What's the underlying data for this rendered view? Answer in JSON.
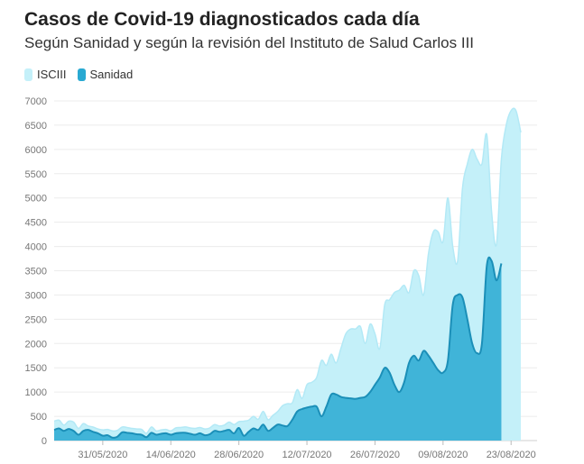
{
  "chart_data": {
    "type": "area",
    "title": "Casos de Covid-19 diagnosticados cada día",
    "subtitle": "Según Sanidad y según la revisión del Instituto de Salud Carlos III",
    "xlabel": "",
    "ylabel": "",
    "ylim": [
      0,
      7000
    ],
    "yticks": [
      0,
      500,
      1000,
      1500,
      2000,
      2500,
      3000,
      3500,
      4000,
      4500,
      5000,
      5500,
      6000,
      6500,
      7000
    ],
    "xticks": [
      {
        "day": 10,
        "label": "31/05/2020"
      },
      {
        "day": 24,
        "label": "14/06/2020"
      },
      {
        "day": 38,
        "label": "28/06/2020"
      },
      {
        "day": 52,
        "label": "12/07/2020"
      },
      {
        "day": 66,
        "label": "26/07/2020"
      },
      {
        "day": 80,
        "label": "09/08/2020"
      },
      {
        "day": 94,
        "label": "23/08/2020"
      }
    ],
    "grid": true,
    "legend_position": "top-left",
    "series": [
      {
        "name": "ISCIII",
        "color": "#c4f0f9",
        "values": [
          400,
          420,
          320,
          400,
          380,
          250,
          350,
          300,
          280,
          240,
          220,
          230,
          200,
          210,
          280,
          270,
          250,
          240,
          230,
          150,
          280,
          200,
          220,
          230,
          200,
          260,
          270,
          280,
          260,
          250,
          270,
          240,
          260,
          330,
          300,
          320,
          380,
          330,
          390,
          400,
          420,
          500,
          440,
          600,
          430,
          520,
          600,
          720,
          760,
          780,
          1050,
          870,
          1150,
          1200,
          1300,
          1650,
          1550,
          1780,
          1600,
          1900,
          2200,
          2300,
          2300,
          2350,
          2000,
          2400,
          2200,
          1900,
          2800,
          2900,
          3050,
          3100,
          3200,
          3050,
          3500,
          3400,
          3000,
          3850,
          4300,
          4300,
          4100,
          5000,
          4000,
          3700,
          5200,
          5700,
          6000,
          5800,
          5700,
          6300,
          4700,
          4050,
          5800,
          6500,
          6800,
          6800,
          6350
        ]
      },
      {
        "name": "Sanidad",
        "color": "#29a9d2",
        "values": [
          220,
          250,
          200,
          240,
          200,
          120,
          200,
          220,
          180,
          150,
          100,
          110,
          60,
          80,
          170,
          160,
          150,
          130,
          120,
          70,
          160,
          120,
          140,
          150,
          120,
          150,
          160,
          160,
          140,
          120,
          150,
          110,
          130,
          200,
          180,
          200,
          220,
          150,
          260,
          100,
          180,
          250,
          220,
          330,
          200,
          260,
          330,
          310,
          300,
          430,
          600,
          650,
          680,
          700,
          700,
          500,
          700,
          950,
          950,
          900,
          880,
          870,
          860,
          880,
          900,
          1000,
          1150,
          1300,
          1500,
          1400,
          1150,
          1000,
          1200,
          1600,
          1750,
          1650,
          1850,
          1750,
          1600,
          1450,
          1400,
          1650,
          2800,
          3000,
          2950,
          2500,
          2000,
          1800,
          2000,
          3600,
          3700,
          3300,
          3650
        ]
      }
    ]
  }
}
